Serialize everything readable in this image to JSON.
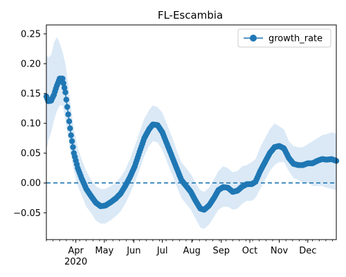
{
  "chart_data": {
    "type": "line",
    "title": "FL-Escambia",
    "xlabel": "",
    "ylabel": "",
    "grid": false,
    "legend": {
      "position": "top-right",
      "entries": [
        "growth_rate"
      ]
    },
    "colors": {
      "series": "#1f77b4",
      "band": "#dbe9f6",
      "zero_line": "#1f77b4"
    },
    "x_range": [
      "2020-03-01",
      "2020-12-31"
    ],
    "ylim": [
      -0.095,
      0.265
    ],
    "yticks": [
      -0.05,
      0.0,
      0.05,
      0.1,
      0.15,
      0.2,
      0.25
    ],
    "ytick_labels": [
      "−0.05",
      "0.00",
      "0.05",
      "0.10",
      "0.15",
      "0.20",
      "0.25"
    ],
    "xticks": [
      {
        "date": "2020-04-01",
        "label": "Apr",
        "sublabel": "2020"
      },
      {
        "date": "2020-05-01",
        "label": "May"
      },
      {
        "date": "2020-06-01",
        "label": "Jun"
      },
      {
        "date": "2020-07-01",
        "label": "Jul"
      },
      {
        "date": "2020-08-01",
        "label": "Aug"
      },
      {
        "date": "2020-09-01",
        "label": "Sep"
      },
      {
        "date": "2020-10-01",
        "label": "Oct"
      },
      {
        "date": "2020-11-01",
        "label": "Nov"
      },
      {
        "date": "2020-12-01",
        "label": "Dec"
      }
    ],
    "reference_line": {
      "y": 0.0,
      "style": "dashed"
    },
    "series": [
      {
        "name": "growth_rate",
        "marker": "circle",
        "points": [
          {
            "x": "2020-03-01",
            "y": 0.145,
            "lo": 0.055,
            "hi": 0.215
          },
          {
            "x": "2020-03-03",
            "y": 0.137,
            "lo": 0.07,
            "hi": 0.21
          },
          {
            "x": "2020-03-06",
            "y": 0.138,
            "lo": 0.085,
            "hi": 0.215
          },
          {
            "x": "2020-03-09",
            "y": 0.148,
            "lo": 0.105,
            "hi": 0.235
          },
          {
            "x": "2020-03-12",
            "y": 0.163,
            "lo": 0.12,
            "hi": 0.245
          },
          {
            "x": "2020-03-15",
            "y": 0.175,
            "lo": 0.13,
            "hi": 0.235
          },
          {
            "x": "2020-03-18",
            "y": 0.175,
            "lo": 0.13,
            "hi": 0.22
          },
          {
            "x": "2020-03-21",
            "y": 0.152,
            "lo": 0.105,
            "hi": 0.2
          },
          {
            "x": "2020-03-24",
            "y": 0.115,
            "lo": 0.075,
            "hi": 0.165
          },
          {
            "x": "2020-03-27",
            "y": 0.08,
            "lo": 0.045,
            "hi": 0.125
          },
          {
            "x": "2020-03-30",
            "y": 0.05,
            "lo": 0.02,
            "hi": 0.09
          },
          {
            "x": "2020-04-03",
            "y": 0.025,
            "lo": -0.005,
            "hi": 0.06
          },
          {
            "x": "2020-04-07",
            "y": 0.008,
            "lo": -0.02,
            "hi": 0.04
          },
          {
            "x": "2020-04-12",
            "y": -0.01,
            "lo": -0.04,
            "hi": 0.02
          },
          {
            "x": "2020-04-17",
            "y": -0.022,
            "lo": -0.05,
            "hi": 0.005
          },
          {
            "x": "2020-04-22",
            "y": -0.033,
            "lo": -0.063,
            "hi": -0.005
          },
          {
            "x": "2020-04-27",
            "y": -0.039,
            "lo": -0.068,
            "hi": -0.01
          },
          {
            "x": "2020-05-02",
            "y": -0.038,
            "lo": -0.068,
            "hi": -0.01
          },
          {
            "x": "2020-05-08",
            "y": -0.032,
            "lo": -0.062,
            "hi": -0.005
          },
          {
            "x": "2020-05-13",
            "y": -0.026,
            "lo": -0.056,
            "hi": 0.0
          },
          {
            "x": "2020-05-18",
            "y": -0.018,
            "lo": -0.048,
            "hi": 0.01
          },
          {
            "x": "2020-05-23",
            "y": -0.005,
            "lo": -0.035,
            "hi": 0.022
          },
          {
            "x": "2020-05-28",
            "y": 0.01,
            "lo": -0.018,
            "hi": 0.04
          },
          {
            "x": "2020-06-02",
            "y": 0.028,
            "lo": 0.0,
            "hi": 0.062
          },
          {
            "x": "2020-06-07",
            "y": 0.052,
            "lo": 0.022,
            "hi": 0.085
          },
          {
            "x": "2020-06-12",
            "y": 0.075,
            "lo": 0.045,
            "hi": 0.108
          },
          {
            "x": "2020-06-17",
            "y": 0.09,
            "lo": 0.062,
            "hi": 0.122
          },
          {
            "x": "2020-06-21",
            "y": 0.098,
            "lo": 0.07,
            "hi": 0.13
          },
          {
            "x": "2020-06-26",
            "y": 0.097,
            "lo": 0.068,
            "hi": 0.127
          },
          {
            "x": "2020-07-01",
            "y": 0.085,
            "lo": 0.055,
            "hi": 0.118
          },
          {
            "x": "2020-07-06",
            "y": 0.065,
            "lo": 0.035,
            "hi": 0.098
          },
          {
            "x": "2020-07-11",
            "y": 0.045,
            "lo": 0.015,
            "hi": 0.078
          },
          {
            "x": "2020-07-16",
            "y": 0.025,
            "lo": -0.005,
            "hi": 0.055
          },
          {
            "x": "2020-07-21",
            "y": 0.005,
            "lo": -0.025,
            "hi": 0.035
          },
          {
            "x": "2020-07-26",
            "y": -0.005,
            "lo": -0.035,
            "hi": 0.025
          },
          {
            "x": "2020-07-31",
            "y": -0.015,
            "lo": -0.045,
            "hi": 0.015
          },
          {
            "x": "2020-08-05",
            "y": -0.03,
            "lo": -0.06,
            "hi": 0.0
          },
          {
            "x": "2020-08-10",
            "y": -0.043,
            "lo": -0.075,
            "hi": -0.012
          },
          {
            "x": "2020-08-14",
            "y": -0.045,
            "lo": -0.077,
            "hi": -0.015
          },
          {
            "x": "2020-08-19",
            "y": -0.038,
            "lo": -0.07,
            "hi": -0.008
          },
          {
            "x": "2020-08-24",
            "y": -0.026,
            "lo": -0.058,
            "hi": 0.005
          },
          {
            "x": "2020-08-29",
            "y": -0.012,
            "lo": -0.045,
            "hi": 0.02
          },
          {
            "x": "2020-09-03",
            "y": -0.007,
            "lo": -0.04,
            "hi": 0.028
          },
          {
            "x": "2020-09-08",
            "y": -0.008,
            "lo": -0.04,
            "hi": 0.025
          },
          {
            "x": "2020-09-13",
            "y": -0.015,
            "lo": -0.045,
            "hi": 0.018
          },
          {
            "x": "2020-09-18",
            "y": -0.013,
            "lo": -0.043,
            "hi": 0.02
          },
          {
            "x": "2020-09-23",
            "y": -0.006,
            "lo": -0.035,
            "hi": 0.028
          },
          {
            "x": "2020-09-28",
            "y": -0.002,
            "lo": -0.03,
            "hi": 0.03
          },
          {
            "x": "2020-10-03",
            "y": -0.002,
            "lo": -0.03,
            "hi": 0.035
          },
          {
            "x": "2020-10-07",
            "y": 0.002,
            "lo": -0.025,
            "hi": 0.04
          },
          {
            "x": "2020-10-12",
            "y": 0.02,
            "lo": -0.01,
            "hi": 0.06
          },
          {
            "x": "2020-10-17",
            "y": 0.035,
            "lo": 0.005,
            "hi": 0.075
          },
          {
            "x": "2020-10-22",
            "y": 0.05,
            "lo": 0.02,
            "hi": 0.09
          },
          {
            "x": "2020-10-27",
            "y": 0.06,
            "lo": 0.03,
            "hi": 0.1
          },
          {
            "x": "2020-11-01",
            "y": 0.062,
            "lo": 0.035,
            "hi": 0.095
          },
          {
            "x": "2020-11-06",
            "y": 0.058,
            "lo": 0.035,
            "hi": 0.09
          },
          {
            "x": "2020-11-11",
            "y": 0.042,
            "lo": 0.02,
            "hi": 0.07
          },
          {
            "x": "2020-11-16",
            "y": 0.032,
            "lo": 0.008,
            "hi": 0.062
          },
          {
            "x": "2020-11-21",
            "y": 0.03,
            "lo": 0.005,
            "hi": 0.06
          },
          {
            "x": "2020-11-26",
            "y": 0.03,
            "lo": 0.0,
            "hi": 0.06
          },
          {
            "x": "2020-12-01",
            "y": 0.033,
            "lo": 0.0,
            "hi": 0.065
          },
          {
            "x": "2020-12-06",
            "y": 0.033,
            "lo": -0.005,
            "hi": 0.07
          },
          {
            "x": "2020-12-11",
            "y": 0.037,
            "lo": -0.005,
            "hi": 0.075
          },
          {
            "x": "2020-12-16",
            "y": 0.04,
            "lo": -0.005,
            "hi": 0.08
          },
          {
            "x": "2020-12-21",
            "y": 0.039,
            "lo": -0.008,
            "hi": 0.082
          },
          {
            "x": "2020-12-26",
            "y": 0.04,
            "lo": -0.01,
            "hi": 0.085
          },
          {
            "x": "2020-12-31",
            "y": 0.037,
            "lo": -0.012,
            "hi": 0.083
          }
        ]
      }
    ]
  }
}
